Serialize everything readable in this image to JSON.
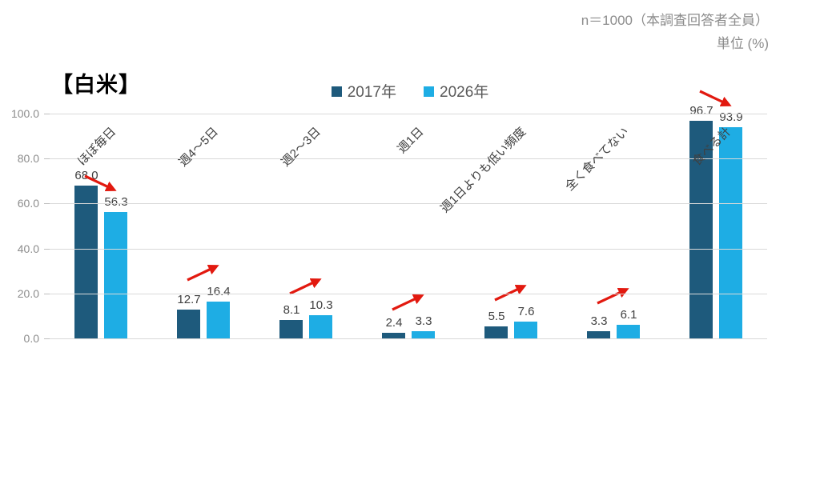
{
  "notes": {
    "sample": "n＝1000（本調査回答者全員）",
    "unit": "単位 (%)"
  },
  "title": "【白米】",
  "chart_data": {
    "type": "bar",
    "title": "【白米】",
    "categories": [
      "ほぼ毎日",
      "週4～5日",
      "週2～3日",
      "週1日",
      "週1日よりも低い頻度",
      "全く食べてない",
      "食べる計"
    ],
    "series": [
      {
        "name": "2017年",
        "color": "#1E5A7C",
        "values": [
          68.0,
          12.7,
          8.1,
          2.4,
          5.5,
          3.3,
          96.7
        ]
      },
      {
        "name": "2026年",
        "color": "#1EADE4",
        "values": [
          56.3,
          16.4,
          10.3,
          3.3,
          7.6,
          6.1,
          93.9
        ]
      }
    ],
    "trend_arrows": [
      "down",
      "up",
      "up",
      "up",
      "up",
      "up",
      "down"
    ],
    "arrow_color": "#E2190F",
    "ylim": [
      0,
      100
    ],
    "yticks": [
      0,
      20,
      40,
      60,
      80,
      100
    ],
    "ytick_format": "one-decimal",
    "grid": true,
    "grid_color": "#D9D9D9",
    "legend_position": "top-center",
    "value_label_color": "#404040",
    "axis_label_color": "#8C8C8C"
  }
}
